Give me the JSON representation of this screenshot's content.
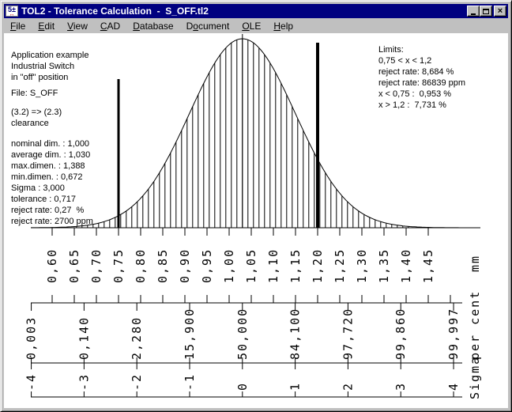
{
  "window": {
    "title": "TOL2 - Tolerance Calculation  -  S_OFF.tl2"
  },
  "menu": {
    "items": [
      {
        "label": "File",
        "underline": 0
      },
      {
        "label": "Edit",
        "underline": 0
      },
      {
        "label": "View",
        "underline": 0
      },
      {
        "label": "CAD",
        "underline": 0
      },
      {
        "label": "Database",
        "underline": 0
      },
      {
        "label": "Document",
        "underline": 1
      },
      {
        "label": "OLE",
        "underline": 0
      },
      {
        "label": "Help",
        "underline": 0
      }
    ]
  },
  "left_panel": {
    "groups": [
      {
        "name": "application-note",
        "lines": [
          "Application example",
          "Industrial Switch",
          "in \"off\" position"
        ]
      },
      {
        "name": "file-name",
        "lines": [
          "File: S_OFF"
        ]
      },
      {
        "name": "relation",
        "lines": [
          "(3.2) => (2.3)",
          "clearance"
        ]
      },
      {
        "name": "statistics",
        "lines": [
          "nominal dim. : 1,000",
          "average dim. : 1,030",
          "max.dimen. : 1,388",
          "min.dimen. : 0,672",
          "Sigma : 3,000",
          "tolerance : 0,717",
          "reject rate: 0,27  %",
          "reject rate: 2700 ppm"
        ]
      }
    ]
  },
  "limits_panel": {
    "lines": [
      "Limits:",
      "0,75 < x < 1,2",
      "reject rate: 8,684 %",
      "reject rate: 86839 ppm",
      "x < 0,75 :  0,953 %",
      "x > 1,2 :  7,731 %"
    ]
  },
  "chart_data": {
    "type": "area",
    "description": "normal distribution of dimension with vertical hatching, mean line and two bold tolerance-limit lines at 0,75 mm and 1,2 mm",
    "distribution": {
      "mean_mm": 1.03,
      "std_dev_mm": 0.1193,
      "lower_limit_mm": 0.75,
      "upper_limit_mm": 1.2
    },
    "mm_axis": {
      "unit": "mm",
      "tick_values": [
        0.6,
        0.65,
        0.7,
        0.75,
        0.8,
        0.85,
        0.9,
        0.95,
        1.0,
        1.05,
        1.1,
        1.15,
        1.2,
        1.25,
        1.3,
        1.35,
        1.4,
        1.45
      ],
      "tick_labels": [
        "0,60",
        "0,65",
        "0,70",
        "0,75",
        "0,80",
        "0,85",
        "0,90",
        "0,95",
        "1,00",
        "1,05",
        "1,10",
        "1,15",
        "1,20",
        "1,25",
        "1,30",
        "1,35",
        "1,40",
        "1,45"
      ]
    },
    "percent_axis": {
      "unit": "per cent",
      "sigma_positions": [
        -4,
        -3,
        -2,
        -1,
        0,
        1,
        2,
        3,
        4
      ],
      "tick_labels": [
        "0,003",
        "0,140",
        "2,280",
        "15,900",
        "50,000",
        "84,100",
        "97,720",
        "99,860",
        "99,997"
      ]
    },
    "sigma_axis": {
      "unit": "Sigma",
      "sigma_positions": [
        -4,
        -3,
        -2,
        -1,
        0,
        1,
        2,
        3,
        4
      ],
      "tick_labels": [
        "-4",
        "-3",
        "-2",
        "-1",
        "0",
        "1",
        "2",
        "3",
        "4"
      ]
    }
  },
  "colors": {
    "title_bar": "#000080",
    "title_text": "#ffffff",
    "chrome": "#c0c0c0",
    "canvas": "#ffffff",
    "ink": "#000000"
  }
}
